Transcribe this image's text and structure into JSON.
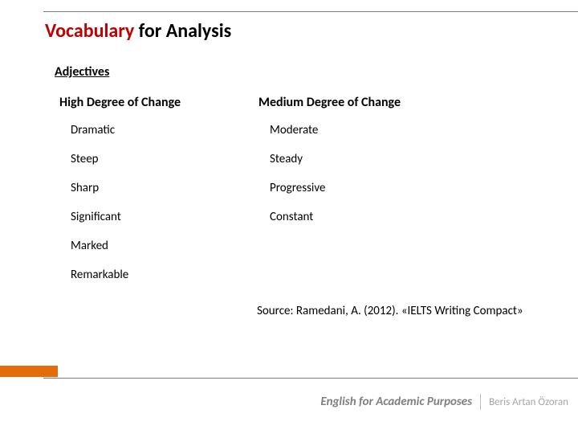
{
  "title": {
    "accent_word": "Vocabulary",
    "rest": " for Analysis",
    "accent_color": "#c00000"
  },
  "sub_heading": "Adjectives",
  "columns": {
    "left": {
      "header": "High Degree of Change",
      "words": [
        "Dramatic",
        "Steep",
        "Sharp",
        "Significant",
        "Marked",
        "Remarkable"
      ]
    },
    "right": {
      "header": "Medium Degree of Change",
      "words": [
        "Moderate",
        "Steady",
        "Progressive",
        "Constant"
      ]
    }
  },
  "source": "Source: Ramedani, A. (2012). «IELTS Writing Compact»",
  "footer": {
    "course": "English for Academic Purposes",
    "author": "Beris Artan Özoran"
  },
  "style": {
    "accent_box_color": "#e46c0a",
    "line_color": "#7f7f7f",
    "title_fontsize": 24,
    "header_fontsize": 16,
    "word_fontsize": 15
  }
}
